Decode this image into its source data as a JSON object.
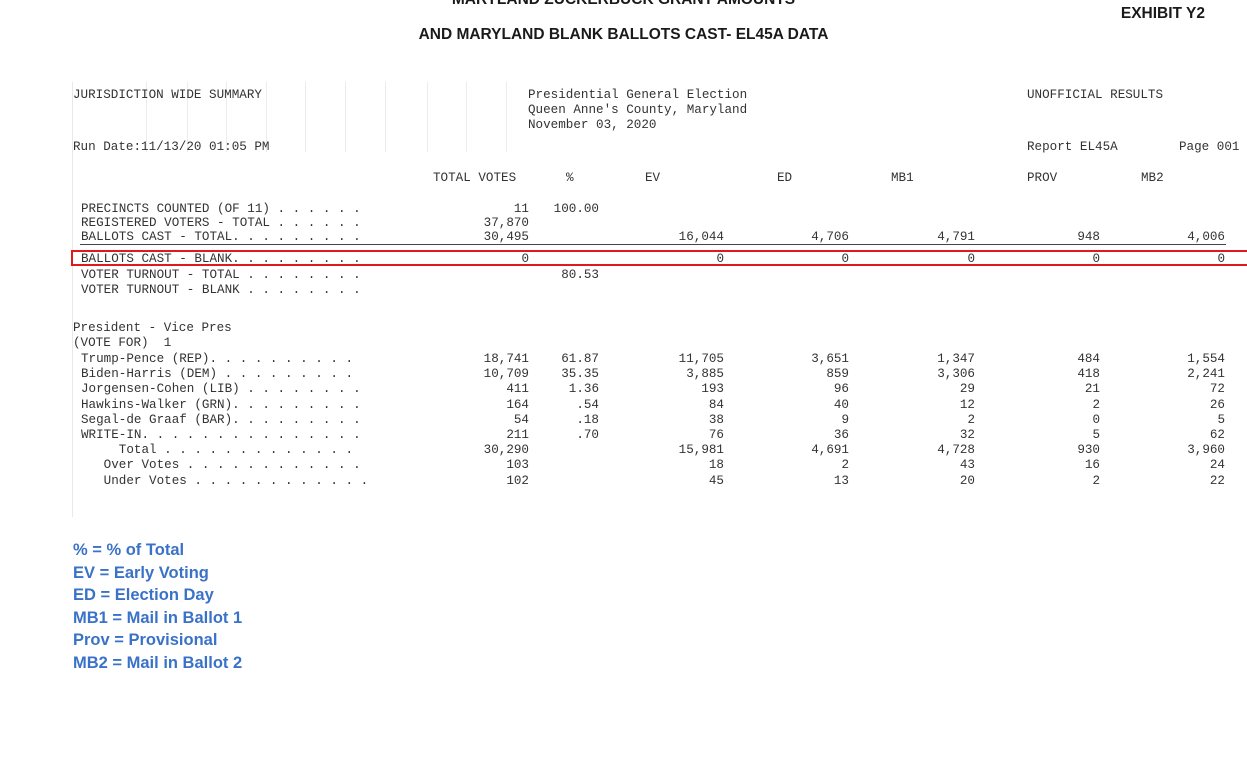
{
  "doc": {
    "title_line1": "MARYLAND ZUCKERBUCK GRANT AMOUNTS",
    "title_line2": "AND MARYLAND BLANK BALLOTS CAST- EL45A DATA",
    "exhibit": "EXHIBIT Y2"
  },
  "report": {
    "header_left": "JURISDICTION WIDE SUMMARY",
    "election_title": "Presidential General Election",
    "county": "Queen Anne's County, Maryland",
    "date": "November 03, 2020",
    "unofficial": "UNOFFICIAL RESULTS",
    "run_date": "Run Date:11/13/20 01:05 PM",
    "report_id": "Report EL45A",
    "page": "Page 001",
    "columns": [
      "TOTAL VOTES",
      "%",
      "EV",
      "ED",
      "MB1",
      "PROV",
      "MB2"
    ],
    "summary_rows": [
      {
        "label": "PRECINCTS COUNTED (OF 11) . . . . . .",
        "total": "11",
        "pct": "100.00",
        "ev": "",
        "ed": "",
        "mb1": "",
        "prov": "",
        "mb2": ""
      },
      {
        "label": "REGISTERED VOTERS - TOTAL . . . . . .",
        "total": "37,870",
        "pct": "",
        "ev": "",
        "ed": "",
        "mb1": "",
        "prov": "",
        "mb2": ""
      },
      {
        "label": "BALLOTS CAST - TOTAL. . . . . . . . .",
        "total": "30,495",
        "pct": "",
        "ev": "16,044",
        "ed": "4,706",
        "mb1": "4,791",
        "prov": "948",
        "mb2": "4,006"
      },
      {
        "label": "BALLOTS CAST - BLANK. . . . . . . . .",
        "total": "0",
        "pct": "",
        "ev": "0",
        "ed": "0",
        "mb1": "0",
        "prov": "0",
        "mb2": "0"
      },
      {
        "label": "VOTER TURNOUT - TOTAL . . . . . . . .",
        "total": "",
        "pct": "80.53",
        "ev": "",
        "ed": "",
        "mb1": "",
        "prov": "",
        "mb2": ""
      },
      {
        "label": "VOTER TURNOUT - BLANK . . . . . . . .",
        "total": "",
        "pct": "",
        "ev": "",
        "ed": "",
        "mb1": "",
        "prov": "",
        "mb2": ""
      }
    ],
    "contest_title": "President - Vice Pres",
    "vote_for": "(VOTE FOR)  1",
    "candidate_rows": [
      {
        "label": "Trump-Pence (REP). . . . . . . . . .",
        "total": "18,741",
        "pct": "61.87",
        "ev": "11,705",
        "ed": "3,651",
        "mb1": "1,347",
        "prov": "484",
        "mb2": "1,554"
      },
      {
        "label": "Biden-Harris (DEM) . . . . . . . . .",
        "total": "10,709",
        "pct": "35.35",
        "ev": "3,885",
        "ed": "859",
        "mb1": "3,306",
        "prov": "418",
        "mb2": "2,241"
      },
      {
        "label": "Jorgensen-Cohen (LIB) . . . . . . . .",
        "total": "411",
        "pct": "1.36",
        "ev": "193",
        "ed": "96",
        "mb1": "29",
        "prov": "21",
        "mb2": "72"
      },
      {
        "label": "Hawkins-Walker (GRN). . . . . . . . .",
        "total": "164",
        "pct": ".54",
        "ev": "84",
        "ed": "40",
        "mb1": "12",
        "prov": "2",
        "mb2": "26"
      },
      {
        "label": "Segal-de Graaf (BAR). . . . . . . . .",
        "total": "54",
        "pct": ".18",
        "ev": "38",
        "ed": "9",
        "mb1": "2",
        "prov": "0",
        "mb2": "5"
      },
      {
        "label": "WRITE-IN. . . . . . . . . . . . . . .",
        "total": "211",
        "pct": ".70",
        "ev": "76",
        "ed": "36",
        "mb1": "32",
        "prov": "5",
        "mb2": "62"
      },
      {
        "label": "     Total . . . . . . . . . . . . .",
        "total": "30,290",
        "pct": "",
        "ev": "15,981",
        "ed": "4,691",
        "mb1": "4,728",
        "prov": "930",
        "mb2": "3,960"
      },
      {
        "label": "   Over Votes . . . . . . . . . . . .",
        "total": "103",
        "pct": "",
        "ev": "18",
        "ed": "2",
        "mb1": "43",
        "prov": "16",
        "mb2": "24"
      },
      {
        "label": "   Under Votes . . . . . . . . . . . .",
        "total": "102",
        "pct": "",
        "ev": "45",
        "ed": "13",
        "mb1": "20",
        "prov": "2",
        "mb2": "22"
      }
    ]
  },
  "legend": [
    "% = % of Total",
    "EV = Early Voting",
    "ED = Election Day",
    "MB1 = Mail in Ballot 1",
    "Prov = Provisional",
    "MB2 = Mail in Ballot 2"
  ],
  "colors": {
    "highlight": "#e0191e",
    "legend_text": "#3a72c8"
  }
}
